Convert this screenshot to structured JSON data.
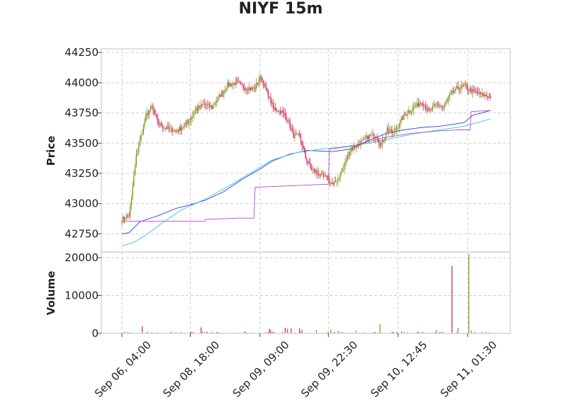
{
  "chart_data": {
    "type": "candlestick",
    "title": "NIYF 15m",
    "price_panel": {
      "ylabel": "Price",
      "ylim": [
        42600,
        44280
      ],
      "yticks": [
        42750,
        43000,
        43250,
        43500,
        43750,
        44000,
        44250
      ],
      "ytick_labels": [
        "42750",
        "43000",
        "43250",
        "43500",
        "43750",
        "44000",
        "44250"
      ],
      "grid": true
    },
    "volume_panel": {
      "ylabel": "Volume",
      "ylim": [
        0,
        21500
      ],
      "yticks": [
        0,
        10000,
        20000
      ],
      "ytick_labels": [
        "0",
        "10000",
        "20000"
      ],
      "grid": true
    },
    "x_axis": {
      "tick_labels": [
        "Sep 06, 04:00",
        "Sep 08, 18:00",
        "Sep 09, 09:00",
        "Sep 09, 22:30",
        "Sep 10, 12:45",
        "Sep 11, 01:30"
      ],
      "tick_bar_index": [
        0,
        57,
        115,
        172,
        230,
        288
      ],
      "n_bars": 308
    },
    "colors": {
      "up": "#6b9a12",
      "down": "#d6155e",
      "line_blue": "#3a3ad9",
      "line_cyan": "#33c4d6",
      "line_purple": "#b04cd6",
      "line_orange": "#e8836b"
    },
    "price_path_keypoints": [
      [
        0,
        42870
      ],
      [
        6,
        42900
      ],
      [
        8,
        43050
      ],
      [
        12,
        43400
      ],
      [
        17,
        43600
      ],
      [
        20,
        43720
      ],
      [
        25,
        43800
      ],
      [
        30,
        43660
      ],
      [
        38,
        43620
      ],
      [
        45,
        43600
      ],
      [
        52,
        43640
      ],
      [
        57,
        43700
      ],
      [
        62,
        43780
      ],
      [
        68,
        43820
      ],
      [
        75,
        43800
      ],
      [
        82,
        43900
      ],
      [
        88,
        43980
      ],
      [
        95,
        44000
      ],
      [
        102,
        43960
      ],
      [
        110,
        43950
      ],
      [
        116,
        44050
      ],
      [
        121,
        43920
      ],
      [
        126,
        43790
      ],
      [
        133,
        43760
      ],
      [
        138,
        43700
      ],
      [
        143,
        43560
      ],
      [
        148,
        43560
      ],
      [
        153,
        43380
      ],
      [
        158,
        43280
      ],
      [
        165,
        43240
      ],
      [
        172,
        43200
      ],
      [
        176,
        43150
      ],
      [
        182,
        43240
      ],
      [
        190,
        43440
      ],
      [
        198,
        43500
      ],
      [
        206,
        43560
      ],
      [
        212,
        43560
      ],
      [
        216,
        43480
      ],
      [
        221,
        43620
      ],
      [
        226,
        43580
      ],
      [
        232,
        43680
      ],
      [
        238,
        43760
      ],
      [
        244,
        43800
      ],
      [
        250,
        43840
      ],
      [
        256,
        43760
      ],
      [
        262,
        43820
      ],
      [
        268,
        43800
      ],
      [
        274,
        43900
      ],
      [
        280,
        43960
      ],
      [
        286,
        43970
      ],
      [
        292,
        43930
      ],
      [
        300,
        43900
      ],
      [
        307,
        43880
      ]
    ],
    "overlays": [
      {
        "color": "line_blue",
        "keypoints": [
          [
            0,
            42750
          ],
          [
            6,
            42760
          ],
          [
            15,
            42850
          ],
          [
            30,
            42900
          ],
          [
            45,
            42960
          ],
          [
            57,
            42990
          ],
          [
            70,
            43030
          ],
          [
            85,
            43100
          ],
          [
            100,
            43200
          ],
          [
            114,
            43280
          ],
          [
            125,
            43350
          ],
          [
            140,
            43410
          ],
          [
            155,
            43440
          ],
          [
            175,
            43430
          ],
          [
            190,
            43450
          ],
          [
            205,
            43520
          ],
          [
            220,
            43580
          ],
          [
            235,
            43610
          ],
          [
            250,
            43630
          ],
          [
            265,
            43640
          ],
          [
            285,
            43670
          ],
          [
            292,
            43730
          ],
          [
            307,
            43770
          ]
        ]
      },
      {
        "color": "line_cyan",
        "keypoints": [
          [
            0,
            42650
          ],
          [
            10,
            42680
          ],
          [
            20,
            42740
          ],
          [
            35,
            42850
          ],
          [
            50,
            42950
          ],
          [
            70,
            43040
          ],
          [
            90,
            43150
          ],
          [
            110,
            43270
          ],
          [
            125,
            43360
          ],
          [
            145,
            43420
          ],
          [
            165,
            43450
          ],
          [
            185,
            43470
          ],
          [
            205,
            43500
          ],
          [
            225,
            43540
          ],
          [
            245,
            43580
          ],
          [
            265,
            43610
          ],
          [
            285,
            43640
          ],
          [
            307,
            43700
          ]
        ]
      },
      {
        "color": "line_purple",
        "keypoints": [
          [
            0,
            42855
          ],
          [
            69,
            42855
          ],
          [
            69,
            42870
          ],
          [
            98,
            42880
          ],
          [
            110,
            42880
          ],
          [
            110,
            43135
          ],
          [
            135,
            43145
          ],
          [
            170,
            43160
          ],
          [
            172,
            43160
          ],
          [
            172,
            43450
          ],
          [
            195,
            43480
          ],
          [
            215,
            43540
          ],
          [
            240,
            43580
          ],
          [
            262,
            43600
          ],
          [
            280,
            43610
          ],
          [
            290,
            43610
          ],
          [
            290,
            43760
          ],
          [
            307,
            43770
          ]
        ]
      }
    ],
    "volume_spikes": [
      [
        17,
        1900,
        "down"
      ],
      [
        66,
        1600,
        "down"
      ],
      [
        123,
        1200,
        "down"
      ],
      [
        124,
        900,
        "up"
      ],
      [
        136,
        1500,
        "down"
      ],
      [
        138,
        1100,
        "down"
      ],
      [
        141,
        1300,
        "down"
      ],
      [
        148,
        1400,
        "down"
      ],
      [
        150,
        900,
        "down"
      ],
      [
        162,
        900,
        "up"
      ],
      [
        174,
        1000,
        "up"
      ],
      [
        180,
        700,
        "up"
      ],
      [
        195,
        800,
        "up"
      ],
      [
        215,
        2400,
        "up"
      ],
      [
        233,
        600,
        "up"
      ],
      [
        262,
        900,
        "up"
      ],
      [
        275,
        17800,
        "down"
      ],
      [
        280,
        1500,
        "up"
      ],
      [
        289,
        21000,
        "up"
      ],
      [
        291,
        800,
        "up"
      ]
    ]
  }
}
